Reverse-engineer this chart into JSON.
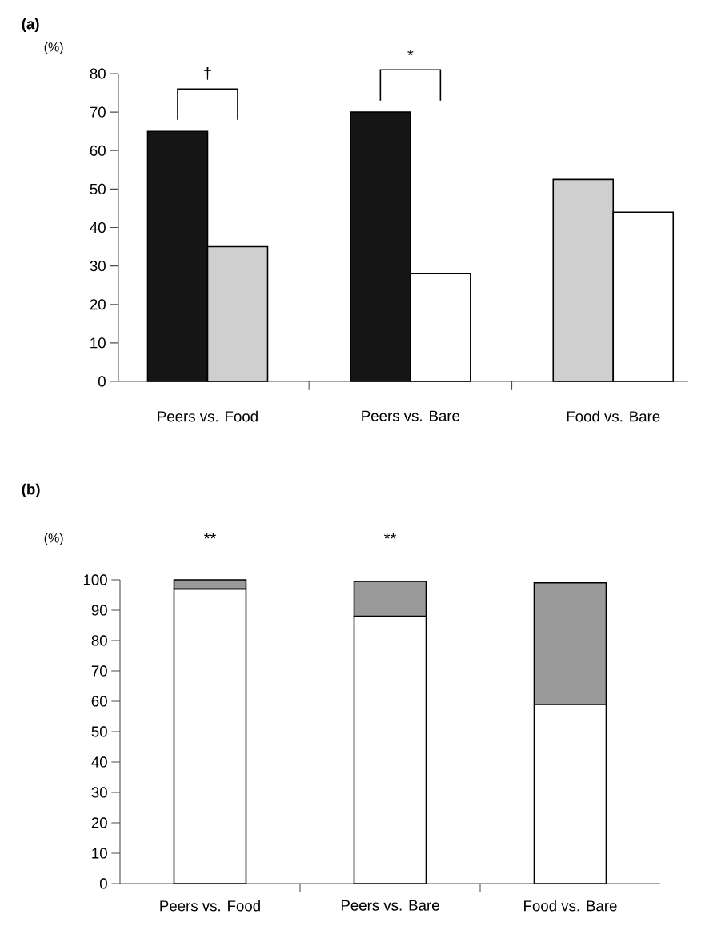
{
  "chart_data": [
    {
      "type": "bar",
      "title": "(a)",
      "ylabel": "(%)",
      "categories": [
        "Peers vs. Food",
        "Peers vs. Bare",
        "Food vs. Bare"
      ],
      "series": [
        {
          "color": "#151515",
          "values": [
            65,
            70,
            null
          ]
        },
        {
          "color": "#cfcfcf",
          "values": [
            35,
            null,
            52.5
          ]
        },
        {
          "color": "#ffffff",
          "values": [
            null,
            28,
            44
          ]
        }
      ],
      "ylim": [
        0,
        80
      ],
      "yticks": [
        0,
        10,
        20,
        30,
        40,
        50,
        60,
        70,
        80
      ],
      "annotations": [
        "†",
        "*"
      ]
    },
    {
      "type": "bar",
      "title": "(b)",
      "ylabel": "(%)",
      "categories": [
        "Peers vs. Food",
        "Peers vs. Bare",
        "Food vs. Bare"
      ],
      "stacked": true,
      "series": [
        {
          "color": "#ffffff",
          "values": [
            97,
            88,
            59
          ]
        },
        {
          "color": "#9a9a9a",
          "values": [
            3,
            11.5,
            40
          ]
        }
      ],
      "ylim": [
        0,
        100
      ],
      "yticks": [
        0,
        10,
        20,
        30,
        40,
        50,
        60,
        70,
        80,
        90,
        100
      ],
      "annotations": [
        "**",
        "**"
      ]
    }
  ]
}
